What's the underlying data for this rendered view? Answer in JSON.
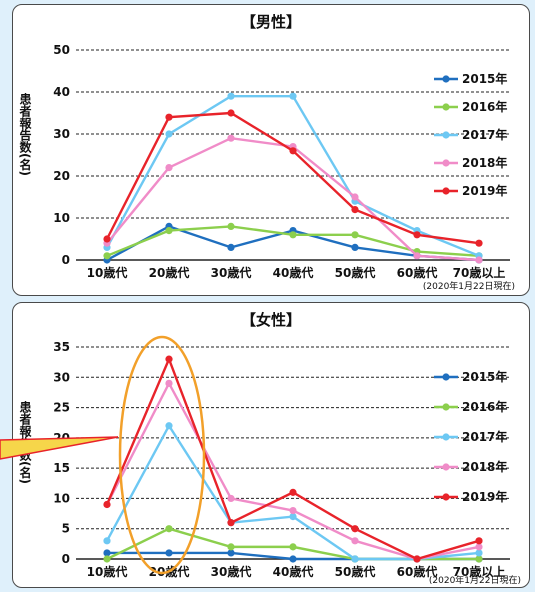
{
  "chart_data": [
    {
      "type": "line",
      "title": "【男性】",
      "ylabel": "患者報告数(名)",
      "xlabel": "",
      "categories": [
        "10歳代",
        "20歳代",
        "30歳代",
        "40歳代",
        "50歳代",
        "60歳代",
        "70歳以上"
      ],
      "yticks": [
        0,
        10,
        20,
        30,
        40,
        50
      ],
      "ylim": [
        0,
        50
      ],
      "grid": "horizontal-dashed",
      "legend_position": "right",
      "note": "(2020年1月22日現在)",
      "series": [
        {
          "name": "2015年",
          "color": "#1f6fbf",
          "values": [
            0,
            8,
            3,
            7,
            3,
            1,
            0
          ]
        },
        {
          "name": "2016年",
          "color": "#8ccf4d",
          "values": [
            1,
            7,
            8,
            6,
            6,
            2,
            1
          ]
        },
        {
          "name": "2017年",
          "color": "#6dc8f3",
          "values": [
            3,
            30,
            39,
            39,
            14,
            7,
            1
          ]
        },
        {
          "name": "2018年",
          "color": "#f08cc8",
          "values": [
            4,
            22,
            29,
            27,
            15,
            1,
            0
          ]
        },
        {
          "name": "2019年",
          "color": "#e8232a",
          "values": [
            5,
            34,
            35,
            26,
            12,
            6,
            4
          ]
        }
      ]
    },
    {
      "type": "line",
      "title": "【女性】",
      "ylabel": "患者報告数(名)",
      "xlabel": "",
      "categories": [
        "10歳代",
        "20歳代",
        "30歳代",
        "40歳代",
        "50歳代",
        "60歳代",
        "70歳以上"
      ],
      "yticks": [
        0,
        5,
        10,
        15,
        20,
        25,
        30,
        35
      ],
      "ylim": [
        0,
        35
      ],
      "grid": "horizontal-dashed",
      "legend_position": "right",
      "note": "(2020年1月22日現在)",
      "series": [
        {
          "name": "2015年",
          "color": "#1f6fbf",
          "values": [
            1,
            1,
            1,
            0,
            0,
            0,
            0
          ]
        },
        {
          "name": "2016年",
          "color": "#8ccf4d",
          "values": [
            0,
            5,
            2,
            2,
            0,
            0,
            0
          ]
        },
        {
          "name": "2017年",
          "color": "#6dc8f3",
          "values": [
            3,
            22,
            6,
            7,
            0,
            0,
            1
          ]
        },
        {
          "name": "2018年",
          "color": "#f08cc8",
          "values": [
            9,
            29,
            10,
            8,
            3,
            0,
            2
          ]
        },
        {
          "name": "2019年",
          "color": "#e8232a",
          "values": [
            9,
            33,
            6,
            11,
            5,
            0,
            3
          ]
        }
      ]
    }
  ]
}
